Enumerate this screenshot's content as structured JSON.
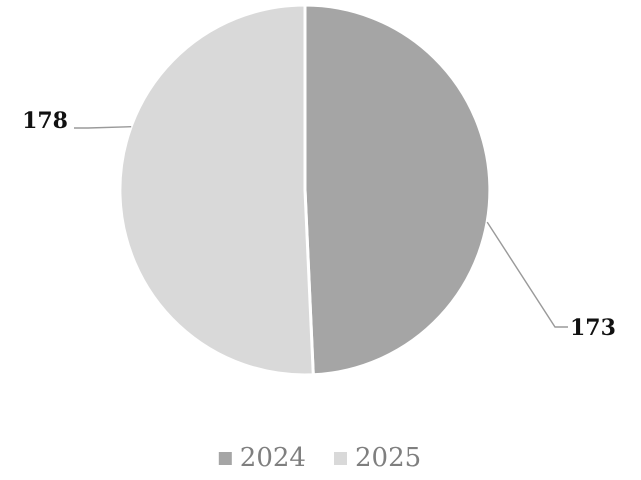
{
  "chart_data": {
    "type": "pie",
    "categories": [
      "2024",
      "2025"
    ],
    "values": [
      173,
      178
    ],
    "data_labels": [
      "173",
      "178"
    ],
    "colors": [
      "#a5a5a5",
      "#d9d9d9"
    ],
    "legend": {
      "placement": "bottom",
      "entries": [
        "2024",
        "2025"
      ]
    },
    "start_angle_deg": 0,
    "direction": "clockwise"
  }
}
